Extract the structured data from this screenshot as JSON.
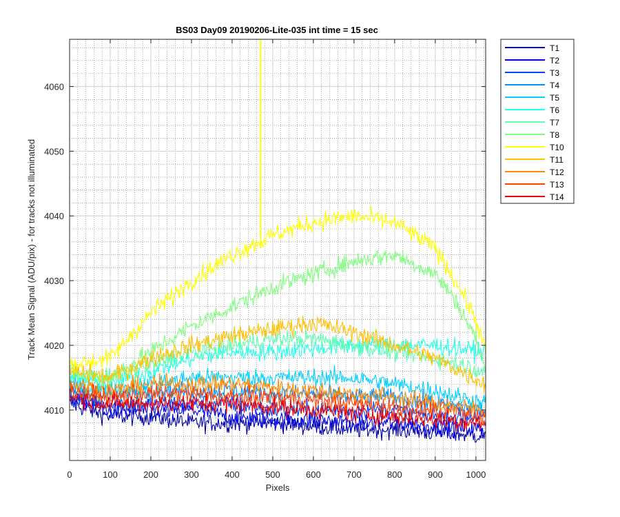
{
  "chart_data": {
    "type": "line",
    "title": "BS03 Day09 20190206-Lite-035 int time = 15 sec",
    "xlabel": "Pixels",
    "ylabel": "Track Mean Signal (ADU/pix) - for tracks not illuminated",
    "xlim": [
      0,
      1024
    ],
    "ylim": [
      4002.2,
      4067.3
    ],
    "xticks": [
      0,
      100,
      200,
      300,
      400,
      500,
      600,
      700,
      800,
      900,
      1000
    ],
    "yticks": [
      4010,
      4020,
      4030,
      4040,
      4050,
      4060
    ],
    "x_tick_labels": [
      "0",
      "100",
      "200",
      "300",
      "400",
      "500",
      "600",
      "700",
      "800",
      "900",
      "1000"
    ],
    "y_tick_labels": [
      "4010",
      "4020",
      "4030",
      "4040",
      "4050",
      "4060"
    ],
    "grid": "major and minor",
    "legend_position": "outside-top-right",
    "series": [
      {
        "name": "T1",
        "color": "#0000a8",
        "x": [
          0,
          100,
          200,
          300,
          400,
          500,
          600,
          700,
          800,
          900,
          1024
        ],
        "values": [
          4011,
          4009,
          4009,
          4008,
          4008,
          4008,
          4007.5,
          4007,
          4007,
          4006.5,
          4006
        ]
      },
      {
        "name": "T2",
        "color": "#0000e8",
        "x": [
          0,
          100,
          200,
          300,
          400,
          500,
          600,
          700,
          800,
          900,
          1024
        ],
        "values": [
          4012,
          4010,
          4010,
          4010,
          4009,
          4008.5,
          4008.5,
          4008,
          4008,
          4007.5,
          4007
        ]
      },
      {
        "name": "T3",
        "color": "#0040ff",
        "x": [
          0,
          100,
          200,
          300,
          400,
          500,
          600,
          700,
          800,
          900,
          1024
        ],
        "values": [
          4012,
          4011,
          4011,
          4011,
          4011,
          4010,
          4010,
          4010,
          4010,
          4009,
          4009
        ]
      },
      {
        "name": "T4",
        "color": "#0090ff",
        "x": [
          0,
          100,
          200,
          300,
          400,
          500,
          600,
          700,
          800,
          900,
          1024
        ],
        "values": [
          4013,
          4012,
          4013,
          4013,
          4013,
          4012.5,
          4012.5,
          4012,
          4012,
          4011,
          4010
        ]
      },
      {
        "name": "T5",
        "color": "#00d0ff",
        "x": [
          0,
          100,
          200,
          300,
          400,
          500,
          600,
          700,
          800,
          900,
          1024
        ],
        "values": [
          4014,
          4013,
          4014,
          4015,
          4015,
          4015,
          4015,
          4015,
          4014,
          4013,
          4011
        ]
      },
      {
        "name": "T6",
        "color": "#20ffe8",
        "x": [
          0,
          100,
          200,
          300,
          400,
          500,
          600,
          700,
          800,
          900,
          1024
        ],
        "values": [
          4015,
          4014,
          4016,
          4018,
          4019,
          4019,
          4019.5,
          4020,
          4020,
          4020,
          4019
        ]
      },
      {
        "name": "T7",
        "color": "#60ffb0",
        "x": [
          0,
          100,
          200,
          300,
          400,
          500,
          600,
          700,
          800,
          900,
          1024
        ],
        "values": [
          4015,
          4015,
          4017,
          4019,
          4020,
          4021,
          4021,
          4020,
          4019,
          4018,
          4016
        ]
      },
      {
        "name": "T8",
        "color": "#80ff80",
        "x": [
          0,
          100,
          200,
          300,
          400,
          500,
          600,
          700,
          800,
          900,
          950,
          1000,
          1024
        ],
        "values": [
          4016,
          4015,
          4019,
          4023,
          4026,
          4029,
          4031,
          4033,
          4034,
          4031,
          4027,
          4021,
          4016
        ]
      },
      {
        "name": "T10",
        "color": "#ffff00",
        "x": [
          0,
          100,
          200,
          300,
          400,
          500,
          600,
          700,
          800,
          900,
          950,
          1000,
          1024
        ],
        "values": [
          4017,
          4018,
          4025,
          4030,
          4034,
          4037,
          4039,
          4040,
          4039,
          4035,
          4030,
          4024,
          4019
        ]
      },
      {
        "name": "T11",
        "color": "#ffc000",
        "x": [
          0,
          100,
          200,
          300,
          400,
          500,
          600,
          700,
          800,
          900,
          1024
        ],
        "values": [
          4016,
          4015,
          4018,
          4020,
          4021.5,
          4022.5,
          4023.5,
          4022,
          4020,
          4018,
          4014
        ]
      },
      {
        "name": "T12",
        "color": "#ff8a00",
        "x": [
          0,
          100,
          200,
          300,
          400,
          500,
          600,
          700,
          800,
          900,
          1024
        ],
        "values": [
          4014,
          4013,
          4014,
          4014,
          4014,
          4013.5,
          4013,
          4012.5,
          4012,
          4011,
          4010
        ]
      },
      {
        "name": "T13",
        "color": "#ff4000",
        "x": [
          0,
          100,
          200,
          300,
          400,
          500,
          600,
          700,
          800,
          900,
          1024
        ],
        "values": [
          4013,
          4012,
          4012.5,
          4012.5,
          4012,
          4012,
          4011.5,
          4011,
          4010.5,
          4010,
          4009
        ]
      },
      {
        "name": "T14",
        "color": "#ee0000",
        "x": [
          0,
          100,
          200,
          300,
          400,
          500,
          600,
          700,
          800,
          900,
          1024
        ],
        "values": [
          4012,
          4011,
          4011,
          4011,
          4011,
          4010.5,
          4010,
          4009.5,
          4009,
          4008.5,
          4008
        ]
      }
    ],
    "annotations": [
      {
        "series": "T10",
        "type": "spike",
        "x": 470,
        "from": 4035,
        "to": 4067.3
      }
    ]
  }
}
